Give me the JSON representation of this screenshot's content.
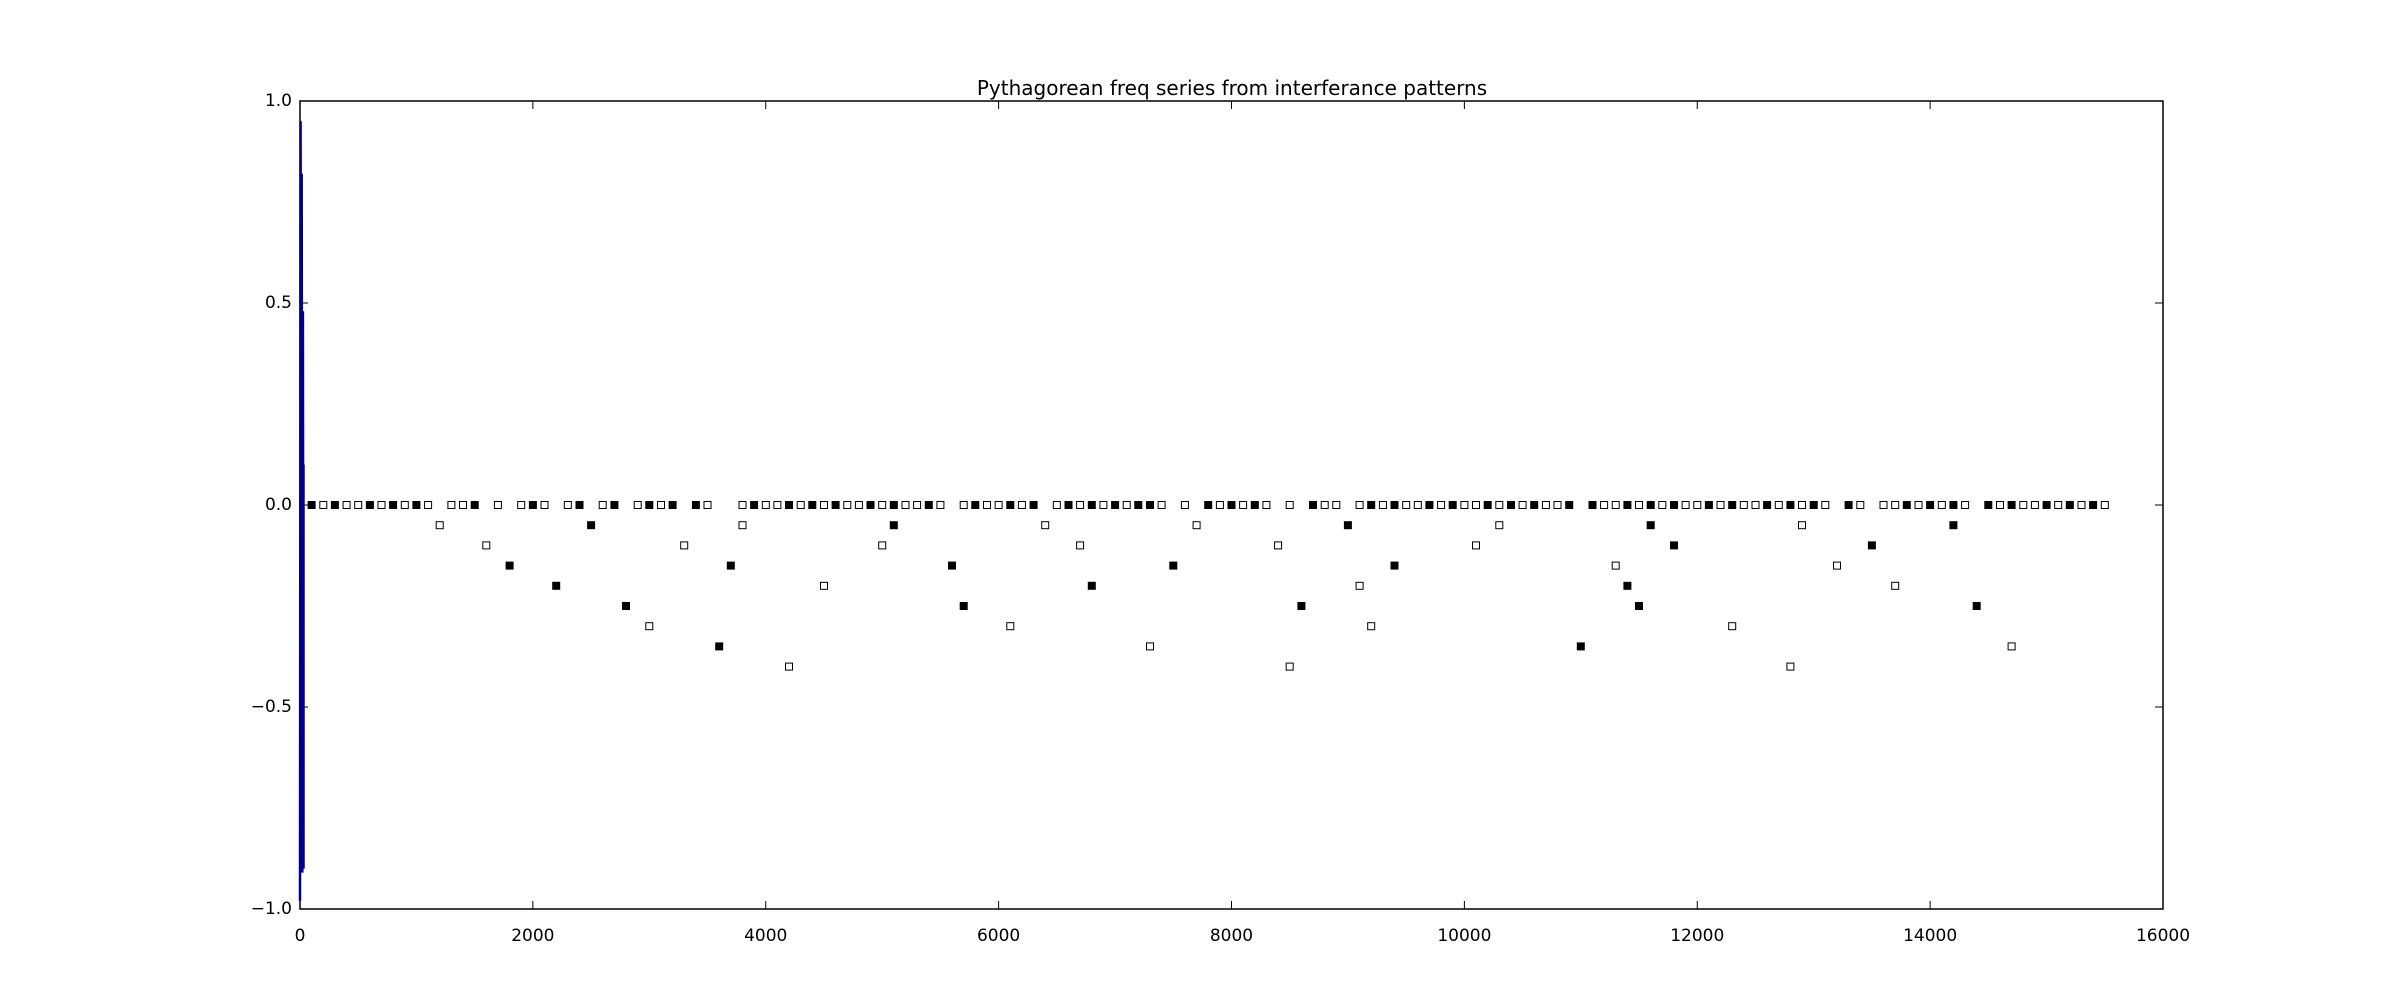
{
  "chart_data": {
    "type": "scatter",
    "title": "Pythagorean freq series from interferance patterns",
    "xlabel": "",
    "ylabel": "",
    "xlim": [
      0,
      16000
    ],
    "ylim": [
      -1.0,
      1.0
    ],
    "grid": false,
    "x_ticks": [
      0,
      2000,
      4000,
      6000,
      8000,
      10000,
      12000,
      14000,
      16000
    ],
    "x_tick_labels": [
      "0",
      "2000",
      "4000",
      "6000",
      "8000",
      "10000",
      "12000",
      "14000",
      "16000"
    ],
    "y_ticks": [
      1.0,
      0.5,
      0.0,
      -0.5,
      -1.0
    ],
    "y_tick_labels": [
      "1.0",
      "0.5",
      "0.0",
      "−0.5",
      "−1.0"
    ],
    "colors": {
      "filled": "#000000",
      "open_fill": "#ffffff",
      "open_edge": "#000000",
      "waveform": "#00008b"
    },
    "series": [
      {
        "marker": "filled-square",
        "points": [
          [
            100,
            0
          ],
          [
            300,
            0
          ],
          [
            600,
            0
          ],
          [
            800,
            0
          ],
          [
            1000,
            0
          ],
          [
            1500,
            0
          ],
          [
            1800,
            -0.15
          ],
          [
            2000,
            0
          ],
          [
            2200,
            -0.2
          ],
          [
            2400,
            0
          ],
          [
            2500,
            -0.05
          ],
          [
            2700,
            0
          ],
          [
            2800,
            -0.25
          ],
          [
            3000,
            0
          ],
          [
            3200,
            0
          ],
          [
            3400,
            0
          ],
          [
            3600,
            -0.35
          ],
          [
            3700,
            -0.15
          ],
          [
            3900,
            0
          ],
          [
            4200,
            0
          ],
          [
            4400,
            0
          ],
          [
            4600,
            0
          ],
          [
            4900,
            0
          ],
          [
            5100,
            -0.05
          ],
          [
            5100,
            0
          ],
          [
            5400,
            0
          ],
          [
            5600,
            -0.15
          ],
          [
            5700,
            -0.25
          ],
          [
            5800,
            0
          ],
          [
            6100,
            0
          ],
          [
            6300,
            0
          ],
          [
            6600,
            0
          ],
          [
            6800,
            -0.2
          ],
          [
            6800,
            0
          ],
          [
            7000,
            0
          ],
          [
            7200,
            0
          ],
          [
            7300,
            0
          ],
          [
            7500,
            -0.15
          ],
          [
            7800,
            0
          ],
          [
            8000,
            0
          ],
          [
            8200,
            0
          ],
          [
            8600,
            -0.25
          ],
          [
            8700,
            0
          ],
          [
            9000,
            -0.05
          ],
          [
            9200,
            0
          ],
          [
            9400,
            -0.15
          ],
          [
            9400,
            0
          ],
          [
            9700,
            0
          ],
          [
            9900,
            0
          ],
          [
            10200,
            0
          ],
          [
            10400,
            0
          ],
          [
            10600,
            0
          ],
          [
            10900,
            0
          ],
          [
            11000,
            -0.35
          ],
          [
            11100,
            0
          ],
          [
            11400,
            -0.2
          ],
          [
            11400,
            0
          ],
          [
            11500,
            -0.25
          ],
          [
            11600,
            -0.05
          ],
          [
            11600,
            0
          ],
          [
            11800,
            -0.1
          ],
          [
            11800,
            0
          ],
          [
            12100,
            0
          ],
          [
            12300,
            0
          ],
          [
            12600,
            0
          ],
          [
            12800,
            0
          ],
          [
            13000,
            0
          ],
          [
            13300,
            0
          ],
          [
            13500,
            -0.1
          ],
          [
            13800,
            0
          ],
          [
            14000,
            0
          ],
          [
            14200,
            -0.05
          ],
          [
            14200,
            0
          ],
          [
            14400,
            -0.25
          ],
          [
            14500,
            0
          ],
          [
            14700,
            0
          ],
          [
            15000,
            0
          ],
          [
            15200,
            0
          ],
          [
            15400,
            0
          ]
        ]
      },
      {
        "marker": "open-square",
        "points": [
          [
            200,
            0
          ],
          [
            400,
            0
          ],
          [
            500,
            0
          ],
          [
            700,
            0
          ],
          [
            900,
            0
          ],
          [
            1100,
            0
          ],
          [
            1200,
            -0.05
          ],
          [
            1300,
            0
          ],
          [
            1400,
            0
          ],
          [
            1600,
            -0.1
          ],
          [
            1700,
            0
          ],
          [
            1900,
            0
          ],
          [
            2100,
            0
          ],
          [
            2300,
            0
          ],
          [
            2600,
            0
          ],
          [
            2900,
            0
          ],
          [
            3000,
            -0.3
          ],
          [
            3100,
            0
          ],
          [
            3300,
            -0.1
          ],
          [
            3500,
            0
          ],
          [
            3800,
            -0.05
          ],
          [
            3800,
            0
          ],
          [
            4000,
            0
          ],
          [
            4100,
            0
          ],
          [
            4200,
            -0.4
          ],
          [
            4300,
            0
          ],
          [
            4500,
            -0.2
          ],
          [
            4500,
            0
          ],
          [
            4700,
            0
          ],
          [
            4800,
            0
          ],
          [
            5000,
            -0.1
          ],
          [
            5000,
            0
          ],
          [
            5200,
            0
          ],
          [
            5300,
            0
          ],
          [
            5500,
            0
          ],
          [
            5700,
            0
          ],
          [
            5900,
            0
          ],
          [
            6000,
            0
          ],
          [
            6100,
            -0.3
          ],
          [
            6200,
            0
          ],
          [
            6400,
            -0.05
          ],
          [
            6500,
            0
          ],
          [
            6700,
            -0.1
          ],
          [
            6700,
            0
          ],
          [
            6900,
            0
          ],
          [
            7100,
            0
          ],
          [
            7300,
            -0.35
          ],
          [
            7400,
            0
          ],
          [
            7600,
            0
          ],
          [
            7700,
            -0.05
          ],
          [
            7900,
            0
          ],
          [
            8100,
            0
          ],
          [
            8300,
            0
          ],
          [
            8400,
            -0.1
          ],
          [
            8500,
            -0.4
          ],
          [
            8500,
            0
          ],
          [
            8800,
            0
          ],
          [
            8900,
            0
          ],
          [
            9100,
            -0.2
          ],
          [
            9100,
            0
          ],
          [
            9200,
            -0.3
          ],
          [
            9300,
            0
          ],
          [
            9500,
            0
          ],
          [
            9600,
            0
          ],
          [
            9800,
            0
          ],
          [
            10000,
            0
          ],
          [
            10100,
            -0.1
          ],
          [
            10100,
            0
          ],
          [
            10300,
            -0.05
          ],
          [
            10300,
            0
          ],
          [
            10500,
            0
          ],
          [
            10700,
            0
          ],
          [
            10800,
            0
          ],
          [
            11200,
            0
          ],
          [
            11300,
            -0.15
          ],
          [
            11300,
            0
          ],
          [
            11500,
            0
          ],
          [
            11700,
            0
          ],
          [
            11900,
            0
          ],
          [
            12000,
            0
          ],
          [
            12200,
            0
          ],
          [
            12300,
            -0.3
          ],
          [
            12400,
            0
          ],
          [
            12500,
            0
          ],
          [
            12700,
            0
          ],
          [
            12800,
            -0.4
          ],
          [
            12900,
            -0.05
          ],
          [
            12900,
            0
          ],
          [
            13100,
            0
          ],
          [
            13200,
            -0.15
          ],
          [
            13400,
            0
          ],
          [
            13600,
            0
          ],
          [
            13700,
            -0.2
          ],
          [
            13700,
            0
          ],
          [
            13900,
            0
          ],
          [
            14100,
            0
          ],
          [
            14300,
            0
          ],
          [
            14600,
            0
          ],
          [
            14700,
            -0.35
          ],
          [
            14800,
            0
          ],
          [
            14900,
            0
          ],
          [
            15100,
            0
          ],
          [
            15300,
            0
          ],
          [
            15500,
            0
          ]
        ]
      },
      {
        "marker": "line",
        "points": [
          [
            0,
            -0.98
          ],
          [
            5,
            0.95
          ],
          [
            10,
            -0.9
          ],
          [
            15,
            0.82
          ],
          [
            20,
            -0.91
          ],
          [
            25,
            0.48
          ],
          [
            30,
            -0.9
          ],
          [
            30,
            0.1
          ]
        ]
      }
    ]
  }
}
